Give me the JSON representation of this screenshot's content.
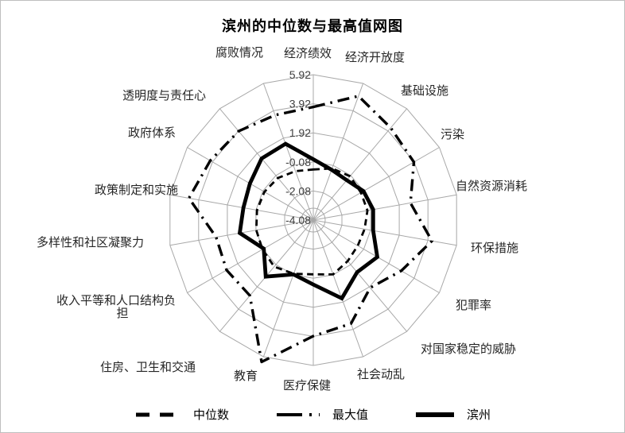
{
  "page": {
    "background": "#ffffff",
    "border_color": "#bfbfbf"
  },
  "chart_data": {
    "type": "radar",
    "title": "滨州的中位数与最高值网图",
    "axis": {
      "min": -4.08,
      "max": 5.92,
      "tick_step": 2,
      "ticks": [
        "5.92",
        "3.92",
        "1.92",
        "-0.08",
        "-2.08",
        "-4.08"
      ]
    },
    "grid": true,
    "legend_position": "bottom",
    "line_color": "#000000",
    "grid_color": "#a8a8a8",
    "categories": [
      {
        "label": "经济绩效"
      },
      {
        "label": "经济开放度"
      },
      {
        "label": "基础设施"
      },
      {
        "label": "污染"
      },
      {
        "label": "自然资源消耗"
      },
      {
        "label": "环保措施"
      },
      {
        "label": "犯罪率"
      },
      {
        "label": "对国家稳定的威胁"
      },
      {
        "label": "社会动乱"
      },
      {
        "label": "医疗保健"
      },
      {
        "label": "教育"
      },
      {
        "label": "住房、卫生和交通"
      },
      {
        "label": "收入平等和人口结构负担",
        "lines": [
          "收入平等和人口结构负",
          "担"
        ]
      },
      {
        "label": "多样性和社区凝聚力"
      },
      {
        "label": "政策制定和实施"
      },
      {
        "label": "政府体系"
      },
      {
        "label": "透明度与责任心"
      },
      {
        "label": "腐败情况"
      }
    ],
    "series": [
      {
        "name": "中位数",
        "style": "dashed",
        "values": [
          -0.6,
          -0.3,
          -0.15,
          -0.3,
          -0.3,
          -0.5,
          -0.55,
          -0.4,
          -0.1,
          -0.35,
          -0.15,
          0.1,
          -0.05,
          -0.1,
          -0.15,
          -0.2,
          -0.3,
          -0.5
        ]
      },
      {
        "name": "最大值",
        "style": "dash-dot",
        "values": [
          3.7,
          5.0,
          4.2,
          3.9,
          2.7,
          4.2,
          2.9,
          2.0,
          3.5,
          3.9,
          6.3,
          2.7,
          2.8,
          2.7,
          4.6,
          4.1,
          3.9,
          3.6
        ]
      },
      {
        "name": "滨州",
        "style": "solid-thick",
        "values": [
          0.1,
          -0.4,
          -0.5,
          -0.1,
          0.1,
          0.1,
          1.0,
          0.6,
          1.65,
          0.35,
          -0.1,
          1.0,
          -0.15,
          1.05,
          0.8,
          0.95,
          1.45,
          1.5
        ]
      }
    ]
  }
}
